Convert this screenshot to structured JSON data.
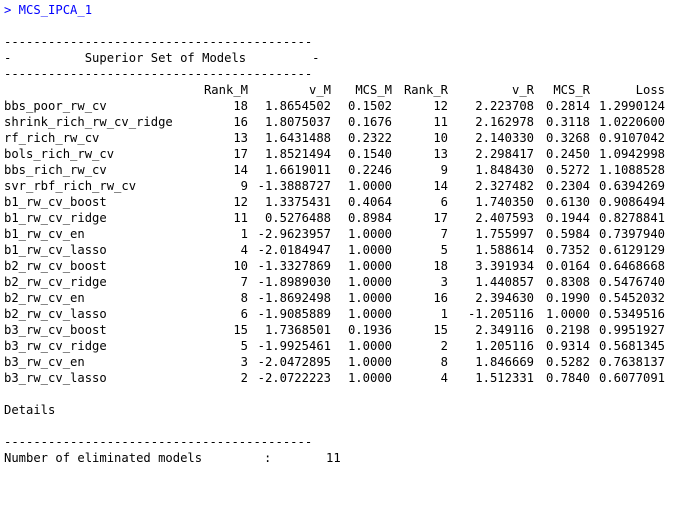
{
  "console": {
    "command": "> MCS_IPCA_1",
    "separator": "------------------------------------------",
    "title_row": "-          Superior Set of Models         -",
    "columns": [
      "Rank_M",
      "v_M",
      "MCS_M",
      "Rank_R",
      "v_R",
      "MCS_R",
      "Loss"
    ],
    "rows": [
      {
        "name": "bbs_poor_rw_cv",
        "rank_m": "18",
        "v_m": "1.8654502",
        "mcs_m": "0.1502",
        "rank_r": "12",
        "v_r": "2.223708",
        "mcs_r": "0.2814",
        "loss": "1.2990124"
      },
      {
        "name": "shrink_rich_rw_cv_ridge",
        "rank_m": "16",
        "v_m": "1.8075037",
        "mcs_m": "0.1676",
        "rank_r": "11",
        "v_r": "2.162978",
        "mcs_r": "0.3118",
        "loss": "1.0220600"
      },
      {
        "name": "rf_rich_rw_cv",
        "rank_m": "13",
        "v_m": "1.6431488",
        "mcs_m": "0.2322",
        "rank_r": "10",
        "v_r": "2.140330",
        "mcs_r": "0.3268",
        "loss": "0.9107042"
      },
      {
        "name": "bols_rich_rw_cv",
        "rank_m": "17",
        "v_m": "1.8521494",
        "mcs_m": "0.1540",
        "rank_r": "13",
        "v_r": "2.298417",
        "mcs_r": "0.2450",
        "loss": "1.0942998"
      },
      {
        "name": "bbs_rich_rw_cv",
        "rank_m": "14",
        "v_m": "1.6619011",
        "mcs_m": "0.2246",
        "rank_r": "9",
        "v_r": "1.848430",
        "mcs_r": "0.5272",
        "loss": "1.1088528"
      },
      {
        "name": "svr_rbf_rich_rw_cv",
        "rank_m": "9",
        "v_m": "-1.3888727",
        "mcs_m": "1.0000",
        "rank_r": "14",
        "v_r": "2.327482",
        "mcs_r": "0.2304",
        "loss": "0.6394269"
      },
      {
        "name": "b1_rw_cv_boost",
        "rank_m": "12",
        "v_m": "1.3375431",
        "mcs_m": "0.4064",
        "rank_r": "6",
        "v_r": "1.740350",
        "mcs_r": "0.6130",
        "loss": "0.9086494"
      },
      {
        "name": "b1_rw_cv_ridge",
        "rank_m": "11",
        "v_m": "0.5276488",
        "mcs_m": "0.8984",
        "rank_r": "17",
        "v_r": "2.407593",
        "mcs_r": "0.1944",
        "loss": "0.8278841"
      },
      {
        "name": "b1_rw_cv_en",
        "rank_m": "1",
        "v_m": "-2.9623957",
        "mcs_m": "1.0000",
        "rank_r": "7",
        "v_r": "1.755997",
        "mcs_r": "0.5984",
        "loss": "0.7397940"
      },
      {
        "name": "b1_rw_cv_lasso",
        "rank_m": "4",
        "v_m": "-2.0184947",
        "mcs_m": "1.0000",
        "rank_r": "5",
        "v_r": "1.588614",
        "mcs_r": "0.7352",
        "loss": "0.6129129"
      },
      {
        "name": "b2_rw_cv_boost",
        "rank_m": "10",
        "v_m": "-1.3327869",
        "mcs_m": "1.0000",
        "rank_r": "18",
        "v_r": "3.391934",
        "mcs_r": "0.0164",
        "loss": "0.6468668"
      },
      {
        "name": "b2_rw_cv_ridge",
        "rank_m": "7",
        "v_m": "-1.8989030",
        "mcs_m": "1.0000",
        "rank_r": "3",
        "v_r": "1.440857",
        "mcs_r": "0.8308",
        "loss": "0.5476740"
      },
      {
        "name": "b2_rw_cv_en",
        "rank_m": "8",
        "v_m": "-1.8692498",
        "mcs_m": "1.0000",
        "rank_r": "16",
        "v_r": "2.394630",
        "mcs_r": "0.1990",
        "loss": "0.5452032"
      },
      {
        "name": "b2_rw_cv_lasso",
        "rank_m": "6",
        "v_m": "-1.9085889",
        "mcs_m": "1.0000",
        "rank_r": "1",
        "v_r": "-1.205116",
        "mcs_r": "1.0000",
        "loss": "0.5349516"
      },
      {
        "name": "b3_rw_cv_boost",
        "rank_m": "15",
        "v_m": "1.7368501",
        "mcs_m": "0.1936",
        "rank_r": "15",
        "v_r": "2.349116",
        "mcs_r": "0.2198",
        "loss": "0.9951927"
      },
      {
        "name": "b3_rw_cv_ridge",
        "rank_m": "5",
        "v_m": "-1.9925461",
        "mcs_m": "1.0000",
        "rank_r": "2",
        "v_r": "1.205116",
        "mcs_r": "0.9314",
        "loss": "0.5681345"
      },
      {
        "name": "b3_rw_cv_en",
        "rank_m": "3",
        "v_m": "-2.0472895",
        "mcs_m": "1.0000",
        "rank_r": "8",
        "v_r": "1.846669",
        "mcs_r": "0.5282",
        "loss": "0.7638137"
      },
      {
        "name": "b3_rw_cv_lasso",
        "rank_m": "2",
        "v_m": "-2.0722223",
        "mcs_m": "1.0000",
        "rank_r": "4",
        "v_r": "1.512331",
        "mcs_r": "0.7840",
        "loss": "0.6077091"
      }
    ],
    "details_label": "Details",
    "eliminated_label": "Number of eliminated models",
    "eliminated_sep": ":",
    "eliminated_value": "11"
  }
}
